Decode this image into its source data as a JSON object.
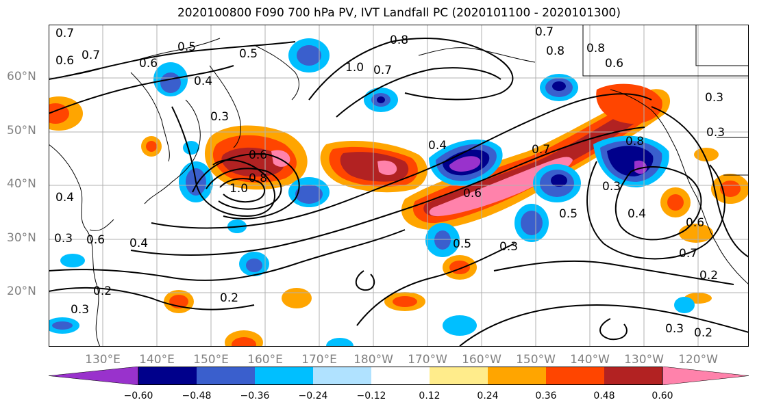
{
  "title": "2020100800 F090 700 hPa PV, IVT Landfall PC (2020101100 - 2020101300)",
  "latitude_labels": [
    "60°N",
    "50°N",
    "40°N",
    "30°N",
    "20°N"
  ],
  "longitude_labels": [
    "130°E",
    "140°E",
    "150°E",
    "160°E",
    "170°E",
    "180°W",
    "170°W",
    "160°W",
    "150°W",
    "140°W",
    "130°W",
    "120°W"
  ],
  "colorbar": {
    "colors": [
      "#9932cc",
      "#00008b",
      "#3a5fcd",
      "#00bfff",
      "#b0e2ff",
      "#ffffff",
      "#ffec8b",
      "#ffa500",
      "#ff4500",
      "#b22222",
      "#ff82ab"
    ],
    "tick_labels": [
      "−0.60",
      "−0.48",
      "−0.36",
      "−0.24",
      "−0.12",
      "0.12",
      "0.24",
      "0.36",
      "0.48",
      "0.60"
    ]
  },
  "contour_labels": [
    "0.7",
    "0.6",
    "0.7",
    "0.5",
    "0.6",
    "0.5",
    "0.4",
    "0.3",
    "0.6",
    "0.8",
    "1.0",
    "0.4",
    "0.6",
    "0.4",
    "0.2",
    "0.3",
    "0.2",
    "0.3",
    "0.8",
    "1.0",
    "0.7",
    "0.7",
    "0.8",
    "0.6",
    "0.3",
    "0.3",
    "0.4",
    "0.7",
    "0.6",
    "0.5",
    "0.3",
    "0.8",
    "0.3",
    "0.4",
    "0.5",
    "0.6",
    "0.7",
    "0.2",
    "0.3",
    "0.2",
    "0.8"
  ]
}
